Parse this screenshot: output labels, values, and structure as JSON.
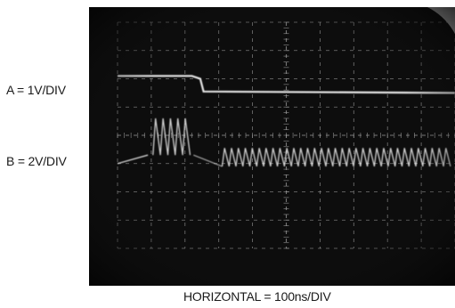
{
  "chart_data": {
    "type": "line",
    "grid": true,
    "channel_labels": {
      "a": "A = 1V/DIV",
      "b": "B = 2V/DIV"
    },
    "xlabel": "HORIZONTAL = 100ns/DIV",
    "xlim_div": [
      0,
      10
    ],
    "ylim_div": [
      0,
      8
    ],
    "series": [
      {
        "x_div": [
          0,
          2.2,
          2.45,
          2.55,
          10
        ],
        "y_div": [
          6.1,
          6.1,
          6.0,
          5.55,
          5.5
        ]
      },
      {
        "burst1": {
          "x_start_div": 1.05,
          "x_end_div": 2.25,
          "period_div": 0.22,
          "low_div": 3.3,
          "high_div": 4.6
        },
        "burst2": {
          "x_start_div": 3.1,
          "x_end_div": 10,
          "period_div": 0.205,
          "low_div": 2.9,
          "high_div": 3.55
        }
      }
    ],
    "colors": {
      "screen": "#0d0d0d",
      "trace": "#e6e6e6",
      "grid": "#9a9a9a"
    }
  }
}
